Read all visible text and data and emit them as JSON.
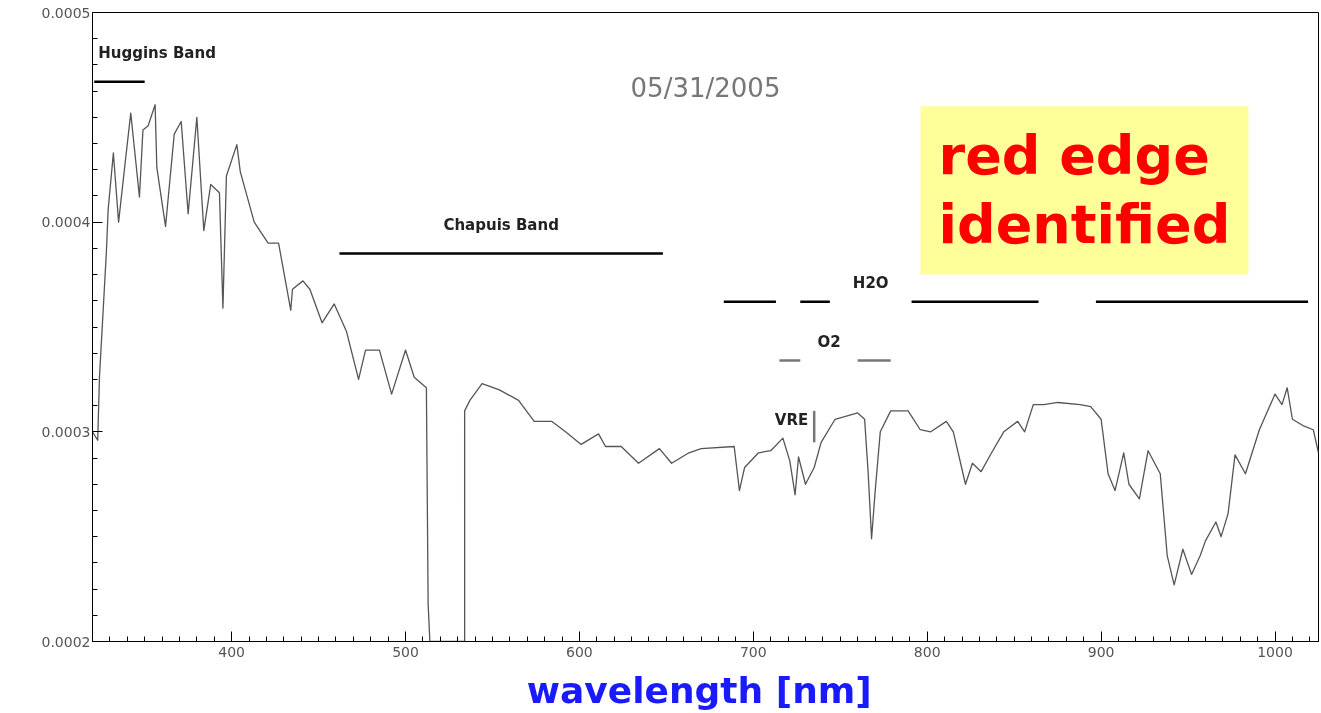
{
  "chart_data": {
    "type": "line",
    "xlabel": "wavelength  [nm]",
    "xlim": [
      320,
      1025
    ],
    "xticks": [
      400,
      500,
      600,
      700,
      800,
      900,
      1000
    ],
    "ylim": [
      0.0002,
      0.0005
    ],
    "yticks": [
      0.0002,
      0.0003,
      0.0004,
      0.0005
    ],
    "grid": false,
    "marker": "none",
    "line_style": "solid",
    "annotations": [
      "05/31/2005",
      "red edge identified"
    ],
    "series": [
      {
        "color": "#555555",
        "x": [
          320,
          323,
          324,
          328,
          329,
          332,
          335,
          339,
          342,
          347,
          349,
          352,
          356,
          357,
          362,
          367,
          371,
          375,
          380,
          384,
          388,
          393,
          395,
          397,
          403,
          405,
          413,
          421,
          427,
          434,
          435,
          441,
          445,
          452,
          459,
          466,
          473,
          477,
          485,
          492,
          500,
          505,
          512,
          513,
          514,
          534,
          534,
          537,
          544,
          554,
          565,
          574,
          584,
          592,
          601,
          611,
          615,
          624,
          634,
          646,
          653,
          663,
          670,
          689,
          692,
          695,
          703,
          710,
          717,
          721,
          724,
          726,
          730,
          735,
          739,
          747,
          760,
          764,
          766,
          768,
          770,
          773,
          779,
          789,
          796,
          802,
          811,
          815,
          822,
          826,
          831,
          837,
          844,
          852,
          856,
          861,
          867,
          875,
          888,
          894,
          900,
          904,
          908,
          913,
          916,
          922,
          927,
          934,
          938,
          942,
          947,
          952,
          957,
          960,
          966,
          969,
          973,
          977,
          983,
          991,
          1000,
          1004,
          1007,
          1010,
          1016,
          1022,
          1025
        ],
        "values": [
          0.0003,
          0.000296,
          0.000326,
          0.000386,
          0.000406,
          0.000433,
          0.0004,
          0.00043,
          0.000452,
          0.000412,
          0.000444,
          0.000446,
          0.000456,
          0.000426,
          0.000398,
          0.000442,
          0.000448,
          0.000404,
          0.00045,
          0.000396,
          0.000418,
          0.000414,
          0.000359,
          0.000422,
          0.000437,
          0.000424,
          0.0004,
          0.00039,
          0.00039,
          0.000358,
          0.000368,
          0.000372,
          0.000368,
          0.000352,
          0.000361,
          0.000348,
          0.000325,
          0.000339,
          0.000339,
          0.000318,
          0.000339,
          0.000326,
          0.000321,
          0.000218,
          0.0002,
          0.0002,
          0.00031,
          0.000315,
          0.000323,
          0.00032,
          0.000315,
          0.000305,
          0.000305,
          0.0003,
          0.000294,
          0.000299,
          0.000293,
          0.000293,
          0.000285,
          0.000292,
          0.000285,
          0.00029,
          0.000292,
          0.000293,
          0.000272,
          0.000283,
          0.00029,
          0.000291,
          0.000297,
          0.000286,
          0.00027,
          0.000288,
          0.000275,
          0.000283,
          0.000295,
          0.000306,
          0.000309,
          0.000306,
          0.000281,
          0.000249,
          0.000271,
          0.0003,
          0.00031,
          0.00031,
          0.000301,
          0.0003,
          0.000305,
          0.0003,
          0.000275,
          0.000285,
          0.000281,
          0.00029,
          0.0003,
          0.000305,
          0.0003,
          0.000313,
          0.000313,
          0.000314,
          0.000313,
          0.000312,
          0.000306,
          0.00028,
          0.000272,
          0.00029,
          0.000275,
          0.000268,
          0.000291,
          0.00028,
          0.000241,
          0.000227,
          0.000244,
          0.000232,
          0.000241,
          0.000248,
          0.000257,
          0.00025,
          0.000261,
          0.000289,
          0.00028,
          0.000301,
          0.000318,
          0.000313,
          0.000321,
          0.000306,
          0.000303,
          0.000301,
          0.00029
        ]
      },
      {
        "name": "Huggins Band",
        "color": "#000000",
        "x": [
          321,
          350
        ],
        "values": [
          0.000467,
          0.000467
        ]
      },
      {
        "name": "Chapuis Band",
        "color": "#000000",
        "x": [
          462,
          648
        ],
        "values": [
          0.000385,
          0.000385
        ]
      },
      {
        "name": "H2O",
        "color": "#000000",
        "x": [
          683,
          713,
          720,
          727,
          744,
          760,
          791,
          864,
          880,
          897,
          1019
        ],
        "values": [
          0.000362,
          0.000362,
          null,
          0.000362,
          0.000362,
          null,
          0.000362,
          0.000362,
          null,
          0.000362,
          0.000362
        ]
      },
      {
        "name": "O2",
        "color": "#777777",
        "x": [
          715,
          727,
          740,
          760,
          779
        ],
        "values": [
          0.000334,
          0.000334,
          null,
          0.000334,
          0.000334
        ]
      },
      {
        "name": "VRE",
        "color": "#777777",
        "x": [
          735,
          735
        ],
        "values": [
          0.000295,
          0.00031
        ]
      }
    ]
  }
}
